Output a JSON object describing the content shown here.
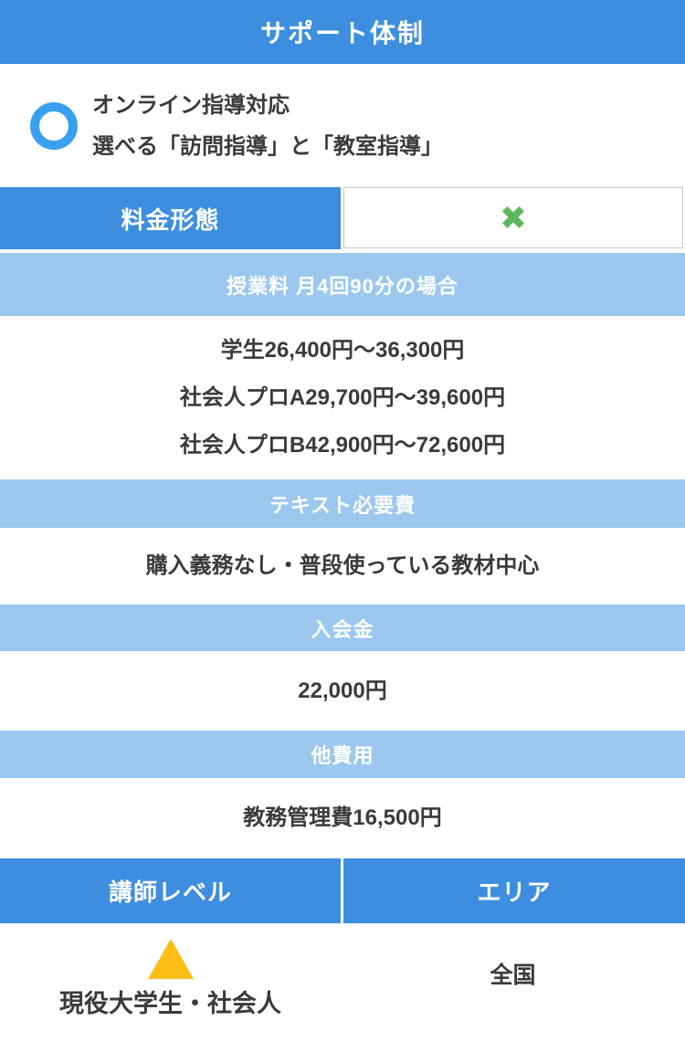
{
  "colors": {
    "primary_blue": "#3d8ede",
    "light_blue": "#9cc8ef",
    "circle_blue": "#39a0f0",
    "green": "#5cb85c",
    "yellow": "#fbbe15",
    "text_dark": "#3a3a3a"
  },
  "header": {
    "title": "サポート体制"
  },
  "support": {
    "icon": "circle-ring-icon",
    "line1": "オンライン指導対応",
    "line2": "選べる「訪問指導」と「教室指導」"
  },
  "fee_type": {
    "label": "料金形態",
    "value_icon": "cross-icon",
    "value_glyph": "✖"
  },
  "sections": [
    {
      "heading": "授業料 月4回90分の場合",
      "lines": [
        "学生26,400円〜36,300円",
        "社会人プロA29,700円〜39,600円",
        "社会人プロB42,900円〜72,600円"
      ]
    },
    {
      "heading": "テキスト必要費",
      "lines": [
        "購入義務なし・普段使っている教材中心"
      ]
    },
    {
      "heading": "入会金",
      "lines": [
        "22,000円"
      ]
    },
    {
      "heading": "他費用",
      "lines": [
        "教務管理費16,500円"
      ]
    }
  ],
  "footer": {
    "left_header": "講師レベル",
    "right_header": "エリア",
    "left_icon": "triangle-icon",
    "left_value": "現役大学生・社会人",
    "right_value": "全国"
  }
}
